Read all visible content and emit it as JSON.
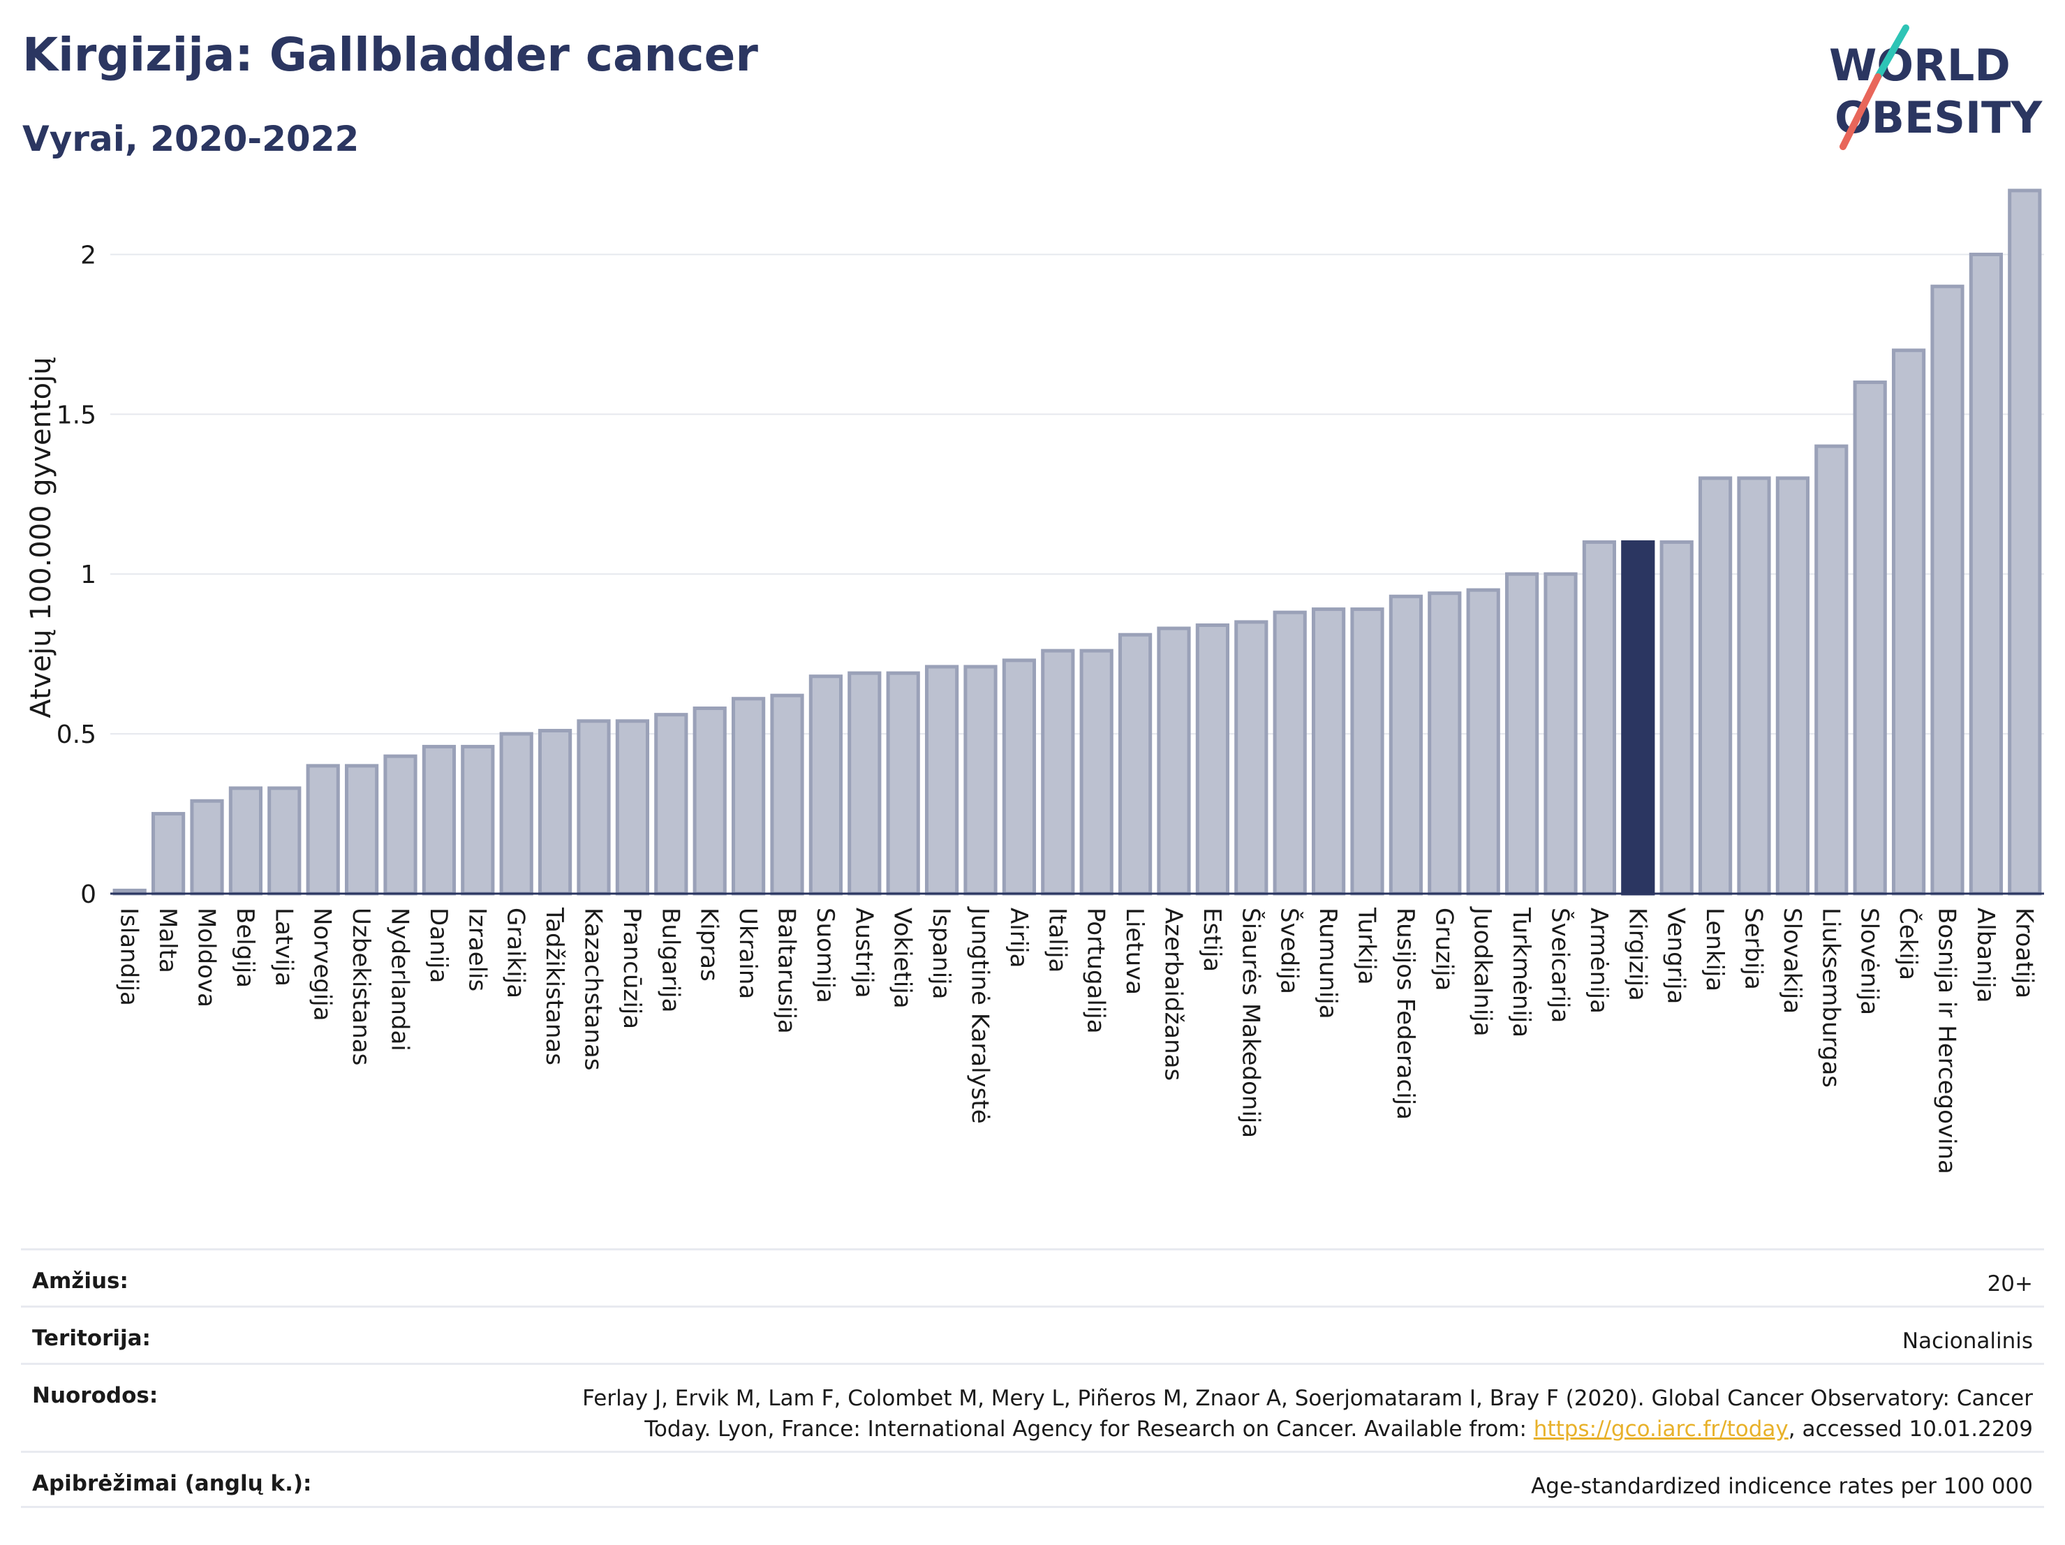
{
  "header": {
    "title": "Kirgizija: Gallbladder cancer",
    "subtitle": "Vyrai, 2020-2022"
  },
  "logo": {
    "line1": "WORLD",
    "line2": "OBESITY",
    "accent_color": "#e8665a",
    "accent_color2": "#2ec4b6",
    "text_color": "#2b3661"
  },
  "chart_data": {
    "type": "bar",
    "ylabel": "Atvejų 100.000 gyventojų",
    "xlabel": "",
    "ylim": [
      0,
      2.25
    ],
    "yticks": [
      0,
      0.5,
      1,
      1.5,
      2
    ],
    "ytick_labels": [
      "0",
      "0.5",
      "1",
      "1.5",
      "2"
    ],
    "grid": true,
    "highlight": "Kirgizija",
    "colors": {
      "bar": "#bcc1d0",
      "bar_border": "#9aa1b8",
      "highlight": "#2b3661"
    },
    "categories": [
      "Islandija",
      "Malta",
      "Moldova",
      "Belgija",
      "Latvija",
      "Norvegija",
      "Uzbekistanas",
      "Nyderlandai",
      "Danija",
      "Izraelis",
      "Graikija",
      "Tadžikistanas",
      "Kazachstanas",
      "Prancūzija",
      "Bulgarija",
      "Kipras",
      "Ukraina",
      "Baltarusija",
      "Suomija",
      "Austrija",
      "Vokietija",
      "Ispanija",
      "Jungtinė Karalystė",
      "Airija",
      "Italija",
      "Portugalija",
      "Lietuva",
      "Azerbaidžanas",
      "Estija",
      "Šiaurės Makedonija",
      "Švedija",
      "Rumunija",
      "Turkija",
      "Rusijos Federacija",
      "Gruzija",
      "Juodkalnija",
      "Turkmėnija",
      "Šveicarija",
      "Armėnija",
      "Kirgizija",
      "Vengrija",
      "Lenkija",
      "Serbija",
      "Slovakija",
      "Liuksemburgas",
      "Slovėnija",
      "Čekija",
      "Bosnija ir Hercegovina",
      "Albanija",
      "Kroatija"
    ],
    "values": [
      0.01,
      0.25,
      0.29,
      0.33,
      0.33,
      0.4,
      0.4,
      0.43,
      0.46,
      0.46,
      0.5,
      0.51,
      0.54,
      0.54,
      0.56,
      0.58,
      0.61,
      0.62,
      0.68,
      0.69,
      0.69,
      0.71,
      0.71,
      0.73,
      0.76,
      0.76,
      0.81,
      0.83,
      0.84,
      0.85,
      0.88,
      0.89,
      0.89,
      0.93,
      0.94,
      0.95,
      1.0,
      1.0,
      1.1,
      1.1,
      1.1,
      1.3,
      1.3,
      1.3,
      1.4,
      1.6,
      1.7,
      1.9,
      2.0,
      2.2
    ]
  },
  "meta": {
    "age_label": "Amžius:",
    "age_value": "20+",
    "territory_label": "Teritorija:",
    "territory_value": "Nacionalinis",
    "refs_label": "Nuorodos:",
    "refs_line1": "Ferlay J, Ervik M, Lam F, Colombet M, Mery L, Piñeros M, Znaor A, Soerjomataram I, Bray F (2020). Global Cancer Observatory: Cancer",
    "refs_line2_pre": "Today. Lyon, France: International Agency for Research on Cancer. Available from: ",
    "refs_link": "https://gco.iarc.fr/today",
    "refs_line2_post": ", accessed 10.01.2209",
    "defs_label": "Apibrėžimai (anglų k.):",
    "defs_value": "Age-standardized indicence rates per 100 000"
  }
}
